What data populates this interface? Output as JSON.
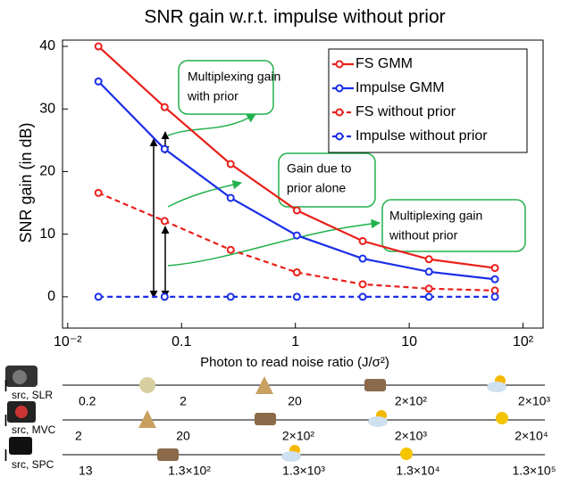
{
  "chart_data": {
    "type": "line",
    "title": "SNR gain w.r.t. impulse without prior",
    "x_label": "Photon to read noise ratio (J/σ²)",
    "y_label": "SNR gain (in dB)",
    "x_scale": "log",
    "xlim": [
      0.009,
      150
    ],
    "ylim": [
      -5,
      41
    ],
    "xticks": [
      {
        "value": 0.01,
        "label": "10⁻²"
      },
      0.1,
      1,
      10,
      {
        "value": 100,
        "label": "10²"
      }
    ],
    "yticks": [
      0,
      10,
      20,
      30,
      40
    ],
    "legend_position": "upper right",
    "x": [
      0.0186,
      0.071,
      0.27,
      1.03,
      3.9,
      14.9,
      56.6
    ],
    "series": [
      {
        "name": "FS GMM",
        "color": "#e8201a",
        "line_style": "solid",
        "values": [
          40,
          30.3,
          21.2,
          13.8,
          8.9,
          6.0,
          4.6
        ]
      },
      {
        "name": "Impulse GMM",
        "color": "#1a2ee8",
        "line_style": "solid",
        "values": [
          34.4,
          23.6,
          15.8,
          9.8,
          6.1,
          4.0,
          2.8
        ]
      },
      {
        "name": "FS without prior",
        "color": "#e8201a",
        "line_style": "dashed",
        "values": [
          16.6,
          12.1,
          7.5,
          3.9,
          2.0,
          1.3,
          1.0
        ]
      },
      {
        "name": "Impulse without prior",
        "color": "#1a2ee8",
        "line_style": "dashed",
        "values": [
          0,
          0,
          0,
          0,
          0,
          0,
          0
        ]
      }
    ],
    "annotations": [
      {
        "lines": [
          "Multiplexing gain",
          "with prior"
        ]
      },
      {
        "lines": [
          "Gain due to",
          "prior alone"
        ]
      },
      {
        "lines": [
          "Multiplexing gain",
          "without prior"
        ]
      }
    ]
  },
  "scale_rows": [
    {
      "symbol": "I",
      "subscript": "src, SLR",
      "labels": [
        "0.2",
        "2",
        "20",
        "2×10²",
        "2×10³"
      ]
    },
    {
      "symbol": "I",
      "subscript": "src, MVC",
      "labels": [
        "2",
        "20",
        "2×10²",
        "2×10³",
        "2×10⁴"
      ]
    },
    {
      "symbol": "I",
      "subscript": "src, SPC",
      "labels": [
        "13",
        "1.3×10²",
        "1.3×10³",
        "1.3×10⁴",
        "1.3×10⁵"
      ]
    }
  ]
}
